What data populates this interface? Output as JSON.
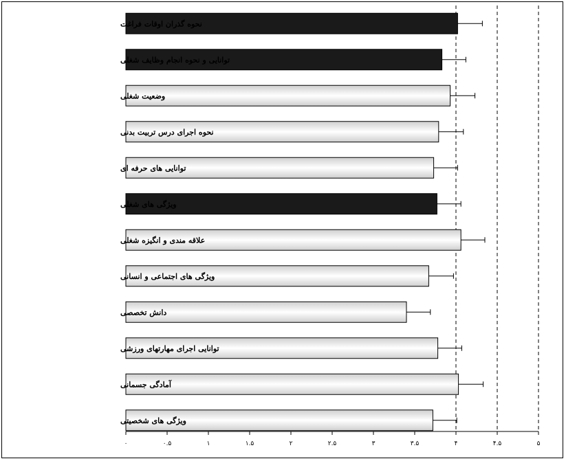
{
  "chart_data": {
    "type": "bar",
    "orientation": "horizontal",
    "categories": [
      "نحوه گذران اوقات فراغت",
      "توانایی و نحوه انجام وظایف شغلی",
      "وضعیت شغلی",
      "نحوه اجرای درس تربیت بدنی",
      "توانایی های حرفه ای",
      "ویژگی های شغلی",
      "علاقه مندی و انگیزه شغلی",
      "ویژگی های اجتماعی و انسانی",
      "دانش تخصصی",
      "توانایی اجرای مهارتهای ورزشی",
      "آمادگی جسمانی",
      "ویژگی های شخصیتی"
    ],
    "values": [
      4.02,
      3.83,
      3.93,
      3.79,
      3.73,
      3.77,
      4.06,
      3.67,
      3.4,
      3.78,
      4.03,
      3.72
    ],
    "errors": [
      0.3,
      0.29,
      0.3,
      0.3,
      0.29,
      0.29,
      0.29,
      0.3,
      0.29,
      0.29,
      0.3,
      0.29
    ],
    "bar_style": [
      "dark",
      "dark",
      "light",
      "light",
      "light",
      "dark",
      "light",
      "light",
      "light",
      "light",
      "light",
      "light"
    ],
    "xlim": [
      0,
      5
    ],
    "xticks": [
      0,
      0.5,
      1,
      1.5,
      2,
      2.5,
      3,
      3.5,
      4,
      4.5,
      5
    ],
    "xtick_labels": [
      "۰",
      "۰.۵",
      "۱",
      "۱.۵",
      "۲",
      "۲.۵",
      "۳",
      "۳.۵",
      "۴",
      "۴.۵",
      "۵"
    ],
    "reference_lines": [
      4,
      4.5,
      5
    ],
    "title": "",
    "xlabel": "",
    "ylabel": "",
    "colors": {
      "dark": "#1a1a1a",
      "light_edge": "#d8d8d8",
      "light_mid": "#ffffff",
      "axis": "#000000"
    }
  }
}
